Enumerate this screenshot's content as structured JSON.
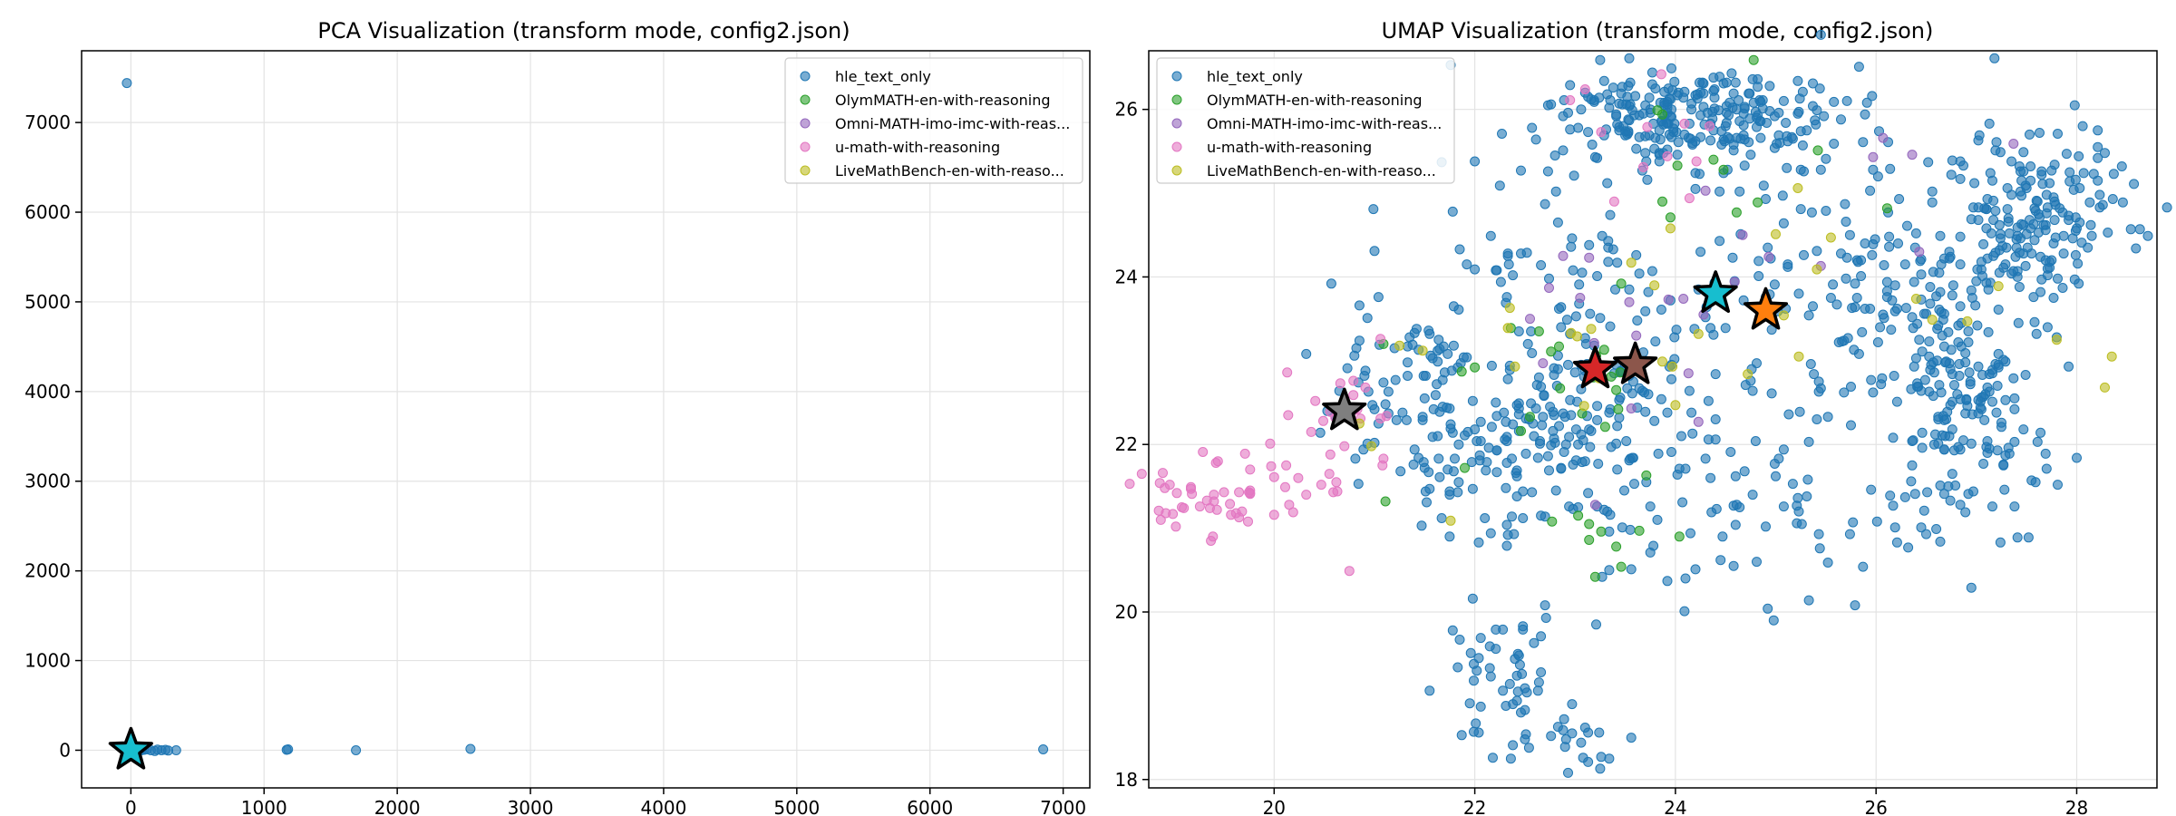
{
  "chart_data": [
    {
      "type": "scatter",
      "title": "PCA Visualization (transform mode, config2.json)",
      "xlabel": "",
      "ylabel": "",
      "xlim": [
        -370,
        7200
      ],
      "ylim": [
        -420,
        7800
      ],
      "xticks": [
        0,
        1000,
        2000,
        3000,
        4000,
        5000,
        6000,
        7000
      ],
      "yticks": [
        0,
        1000,
        2000,
        3000,
        4000,
        5000,
        6000,
        7000
      ],
      "grid": true,
      "legend_position": "top-right",
      "series": [
        {
          "name": "hle_text_only",
          "color": "#1f77b4",
          "x": [
            -30,
            5,
            12,
            20,
            35,
            50,
            60,
            80,
            100,
            120,
            150,
            180,
            200,
            230,
            260,
            280,
            340,
            1170,
            1180,
            1690,
            2550,
            6850
          ],
          "y": [
            7440,
            10,
            0,
            -5,
            5,
            15,
            -10,
            0,
            5,
            10,
            0,
            -8,
            8,
            0,
            5,
            -3,
            0,
            5,
            10,
            0,
            15,
            10
          ]
        },
        {
          "name": "OlymMATH-en-with-reasoning",
          "color": "#2ca02c",
          "x": [],
          "y": []
        },
        {
          "name": "Omni-MATH-imo-imc-with-reas...",
          "color": "#9467bd",
          "x": [],
          "y": []
        },
        {
          "name": "u-math-with-reasoning",
          "color": "#e377c2",
          "x": [],
          "y": []
        },
        {
          "name": "LiveMathBench-en-with-reaso...",
          "color": "#bcbd22",
          "x": [],
          "y": []
        }
      ],
      "highlights": [
        {
          "x": 0,
          "y": 0,
          "color": "#17becf"
        }
      ]
    },
    {
      "type": "scatter",
      "title": "UMAP Visualization (transform mode, config2.json)",
      "xlabel": "",
      "ylabel": "",
      "xlim": [
        18.75,
        28.8
      ],
      "ylim": [
        17.9,
        26.7
      ],
      "xticks": [
        20,
        22,
        24,
        26,
        28
      ],
      "yticks": [
        18,
        20,
        22,
        24,
        26
      ],
      "grid": true,
      "legend_position": "top-left",
      "series": [
        {
          "name": "hle_text_only",
          "color": "#1f77b4",
          "x": [],
          "y": []
        },
        {
          "name": "OlymMATH-en-with-reasoning",
          "color": "#2ca02c",
          "x": [],
          "y": []
        },
        {
          "name": "Omni-MATH-imo-imc-with-reas...",
          "color": "#9467bd",
          "x": [],
          "y": []
        },
        {
          "name": "u-math-with-reasoning",
          "color": "#e377c2",
          "x": [],
          "y": []
        },
        {
          "name": "LiveMathBench-en-with-reaso...",
          "color": "#bcbd22",
          "x": [],
          "y": []
        }
      ],
      "highlights": [
        {
          "x": 23.2,
          "y": 22.9,
          "color": "#d62728"
        },
        {
          "x": 23.6,
          "y": 22.95,
          "color": "#8c564b"
        },
        {
          "x": 20.7,
          "y": 22.4,
          "color": "#7f7f7f"
        },
        {
          "x": 24.4,
          "y": 23.8,
          "color": "#17becf"
        },
        {
          "x": 24.9,
          "y": 23.6,
          "color": "#ff7f0e"
        }
      ]
    }
  ]
}
